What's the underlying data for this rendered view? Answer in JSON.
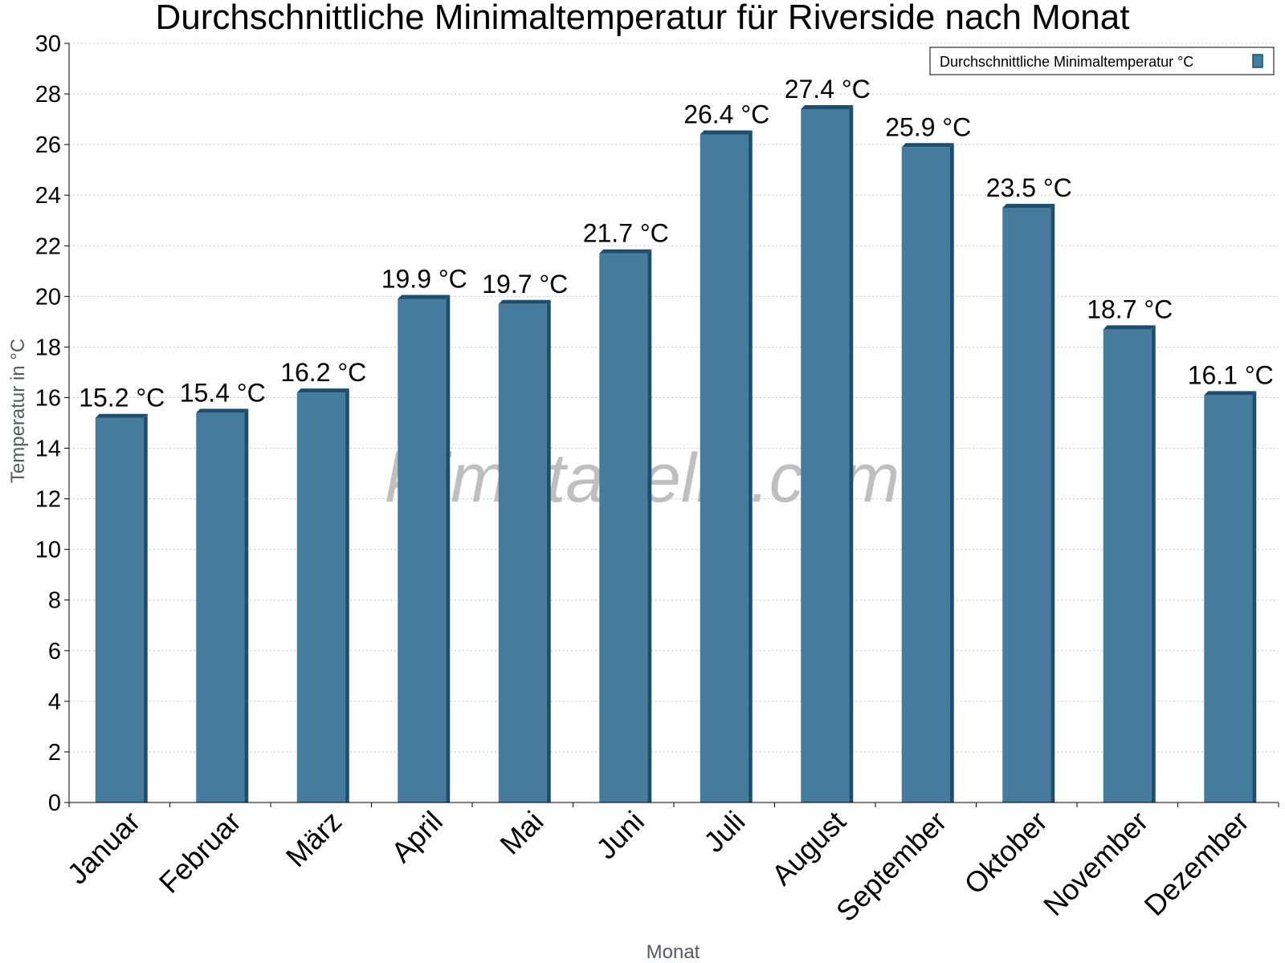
{
  "chart_data": {
    "type": "bar",
    "title": "Durchschnittliche Minimaltemperatur für Riverside nach Monat",
    "xlabel": "Monat",
    "ylabel": "Temperatur in °C",
    "categories": [
      "Januar",
      "Februar",
      "März",
      "April",
      "Mai",
      "Juni",
      "Juli",
      "August",
      "September",
      "Oktober",
      "November",
      "Dezember"
    ],
    "series": [
      {
        "name": "Durchschnittliche Minimaltemperatur °C",
        "values": [
          15.2,
          15.4,
          16.2,
          19.9,
          19.7,
          21.7,
          26.4,
          27.4,
          25.9,
          23.5,
          18.7,
          16.1
        ],
        "labels": [
          "15.2 °C",
          "15.4 °C",
          "16.2 °C",
          "19.9 °C",
          "19.7 °C",
          "21.7 °C",
          "26.4 °C",
          "27.4 °C",
          "25.9 °C",
          "23.5 °C",
          "18.7 °C",
          "16.1 °C"
        ],
        "color": "#457b9d",
        "edge_color": "#1d4e6e"
      }
    ],
    "yticks": [
      "0",
      "2",
      "4",
      "6",
      "8",
      "10",
      "12",
      "14",
      "16",
      "18",
      "20",
      "22",
      "24",
      "26",
      "28",
      "30"
    ],
    "ylim": [
      0,
      30
    ],
    "grid": true,
    "legend_position": "top-right",
    "watermark": "klimatabelle.com"
  }
}
